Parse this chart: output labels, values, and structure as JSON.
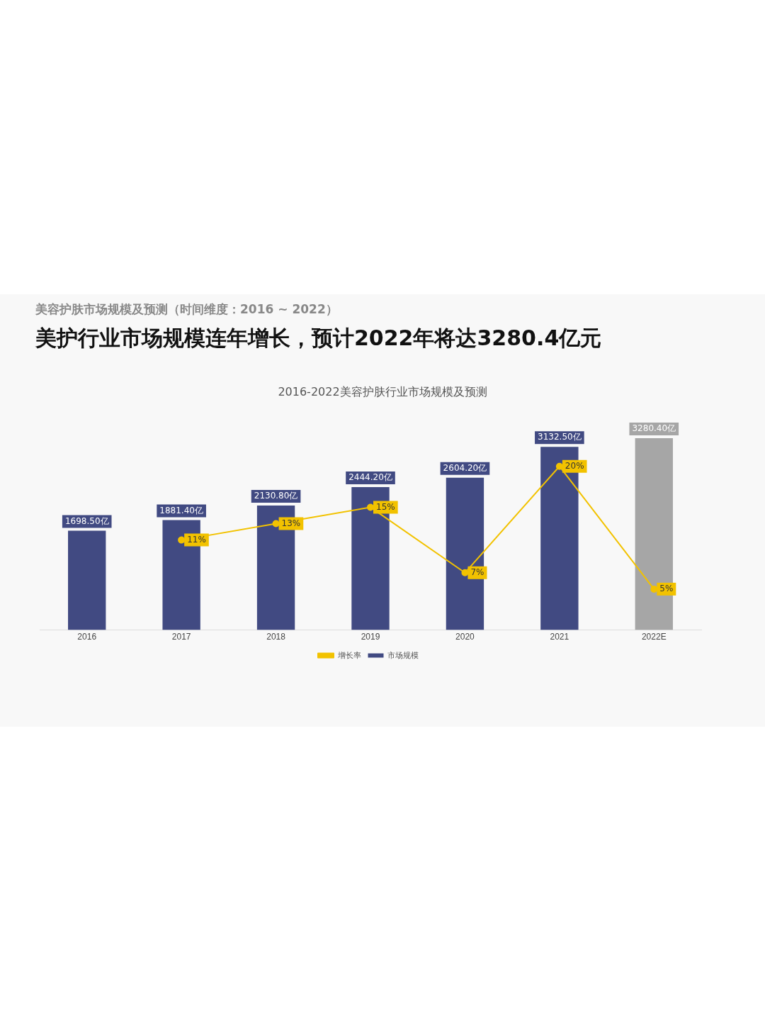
{
  "chart_data": {
    "type": "bar",
    "subtitle": "美容护肤市场规模及预测（时间维度：2016 ~ 2022）",
    "title": "美护行业市场规模连年增长，预计2022年将达3280.4亿元",
    "annotations": [
      "2016-2022美容护肤行业市场规模及预测"
    ],
    "categories": [
      "2016",
      "2017",
      "2018",
      "2019",
      "2020",
      "2021",
      "2022E"
    ],
    "series": [
      {
        "name": "市场规模",
        "colors": [
          "#414a82",
          "#414a82",
          "#414a82",
          "#414a82",
          "#414a82",
          "#414a82",
          "#a6a6a6"
        ],
        "values": [
          1698.5,
          1881.4,
          2130.8,
          2444.2,
          2604.2,
          3132.5,
          3280.4
        ],
        "value_labels": [
          "1698.50亿",
          "1881.40亿",
          "2130.80亿",
          "2444.20亿",
          "2604.20亿",
          "3132.50亿",
          "3280.40亿"
        ]
      },
      {
        "name": "增长率",
        "type": "line",
        "axis": "y2",
        "color": "#f2c200",
        "values": [
          null,
          11,
          13,
          15,
          7,
          20,
          5
        ],
        "value_labels": [
          null,
          "11%",
          "13%",
          "15%",
          "7%",
          "20%",
          "5%"
        ]
      }
    ],
    "legend": "bottom",
    "grid": false,
    "tick_labels": "x",
    "marker": "circle",
    "line_style": "solid"
  }
}
